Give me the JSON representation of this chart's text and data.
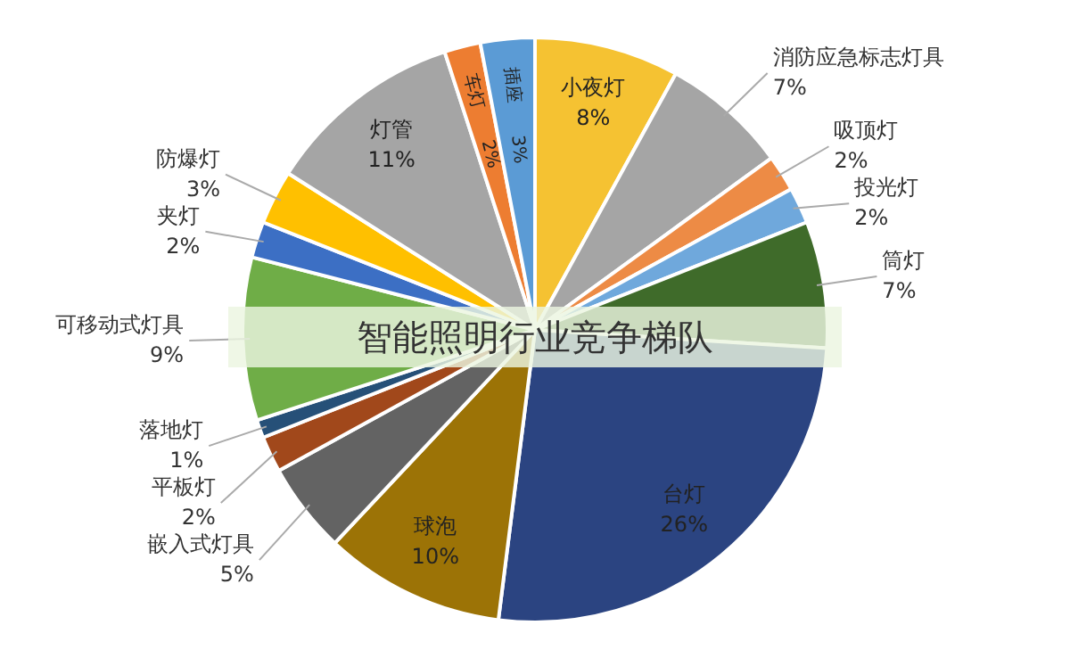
{
  "chart_data": {
    "type": "pie",
    "title": "智能照明行业竞争梯队",
    "categories": [
      "小夜灯",
      "消防应急标志灯具",
      "吸顶灯",
      "投光灯",
      "筒灯",
      "台灯",
      "球泡",
      "嵌入式灯具",
      "平板灯",
      "落地灯",
      "可移动式灯具",
      "夹灯",
      "防爆灯",
      "灯管",
      "车灯",
      "插座"
    ],
    "values": [
      8,
      7,
      2,
      2,
      7,
      26,
      10,
      5,
      2,
      1,
      9,
      2,
      3,
      11,
      2,
      3
    ],
    "value_labels": [
      "8%",
      "7%",
      "2%",
      "2%",
      "7%",
      "26%",
      "10%",
      "5%",
      "2%",
      "1%",
      "9%",
      "2%",
      "3%",
      "11%",
      "2%",
      "3%"
    ],
    "colors": [
      "#f5c232",
      "#a5a5a5",
      "#ed8b45",
      "#6fa8dc",
      "#3f6b2a",
      "#2b4481",
      "#9c7306",
      "#636363",
      "#a1481b",
      "#265078",
      "#6fad47",
      "#3c6fc4",
      "#ffc000",
      "#a5a5a5",
      "#ed7d31",
      "#5b9bd5"
    ],
    "legend": false
  }
}
